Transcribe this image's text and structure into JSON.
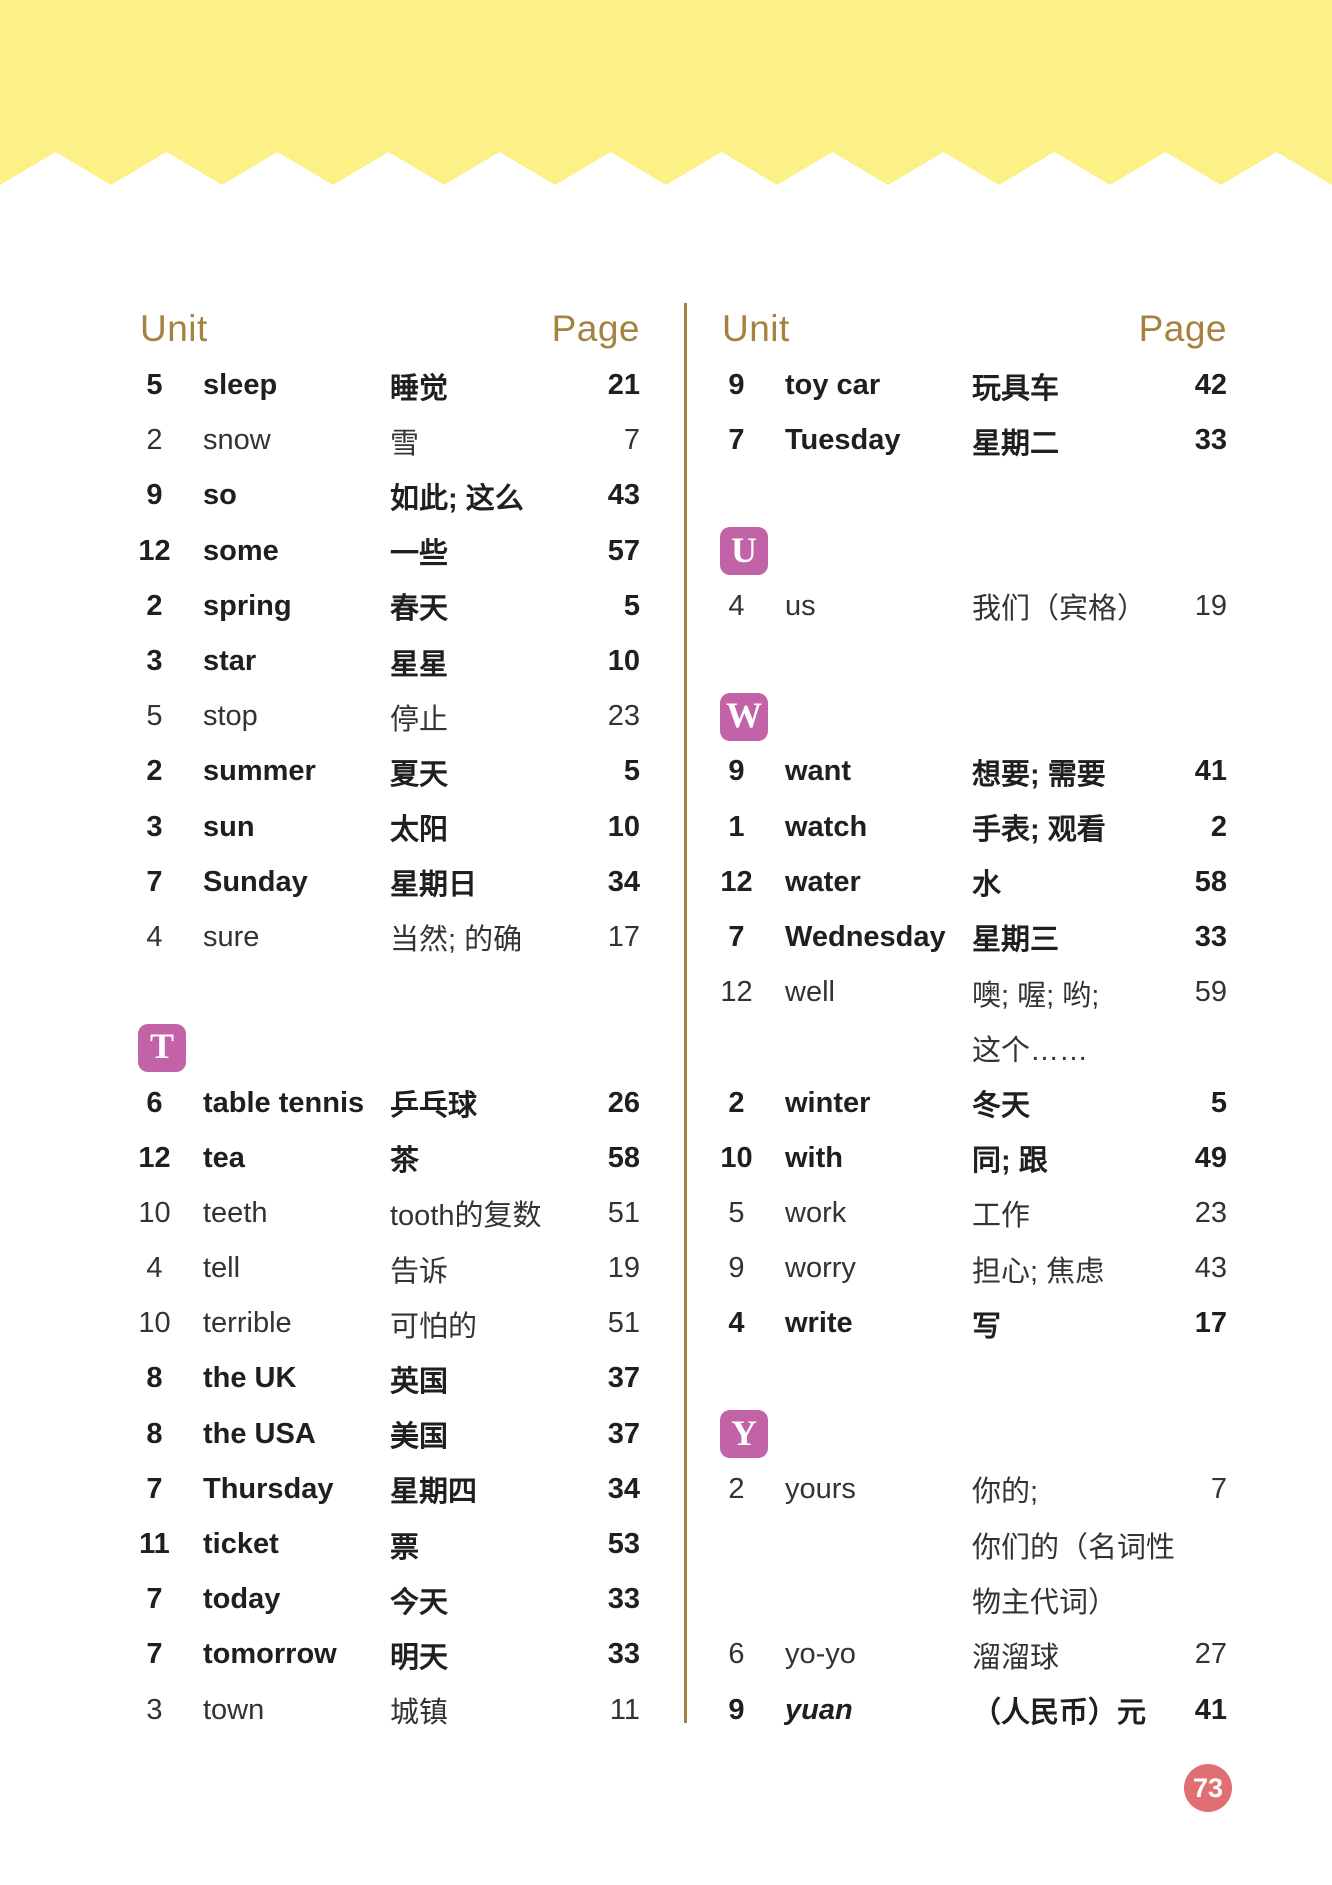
{
  "theme": {
    "banner_yellow": "#FCF187",
    "gold": "#A5823F",
    "pink": "#C363A7",
    "badge_red": "#E06E73"
  },
  "headers": {
    "unit": "Unit",
    "page": "Page"
  },
  "footer": {
    "page_number": "73"
  },
  "columns": {
    "left": {
      "rows": [
        {
          "t": "entry",
          "u": "5",
          "w": "sleep",
          "c": "睡觉",
          "p": "21",
          "b": true
        },
        {
          "t": "entry",
          "u": "2",
          "w": "snow",
          "c": "雪",
          "p": "7",
          "b": false
        },
        {
          "t": "entry",
          "u": "9",
          "w": "so",
          "c": "如此; 这么",
          "p": "43",
          "b": true
        },
        {
          "t": "entry",
          "u": "12",
          "w": "some",
          "c": "一些",
          "p": "57",
          "b": true
        },
        {
          "t": "entry",
          "u": "2",
          "w": "spring",
          "c": "春天",
          "p": "5",
          "b": true
        },
        {
          "t": "entry",
          "u": "3",
          "w": "star",
          "c": "星星",
          "p": "10",
          "b": true
        },
        {
          "t": "entry",
          "u": "5",
          "w": "stop",
          "c": "停止",
          "p": "23",
          "b": false
        },
        {
          "t": "entry",
          "u": "2",
          "w": "summer",
          "c": "夏天",
          "p": "5",
          "b": true
        },
        {
          "t": "entry",
          "u": "3",
          "w": "sun",
          "c": "太阳",
          "p": "10",
          "b": true
        },
        {
          "t": "entry",
          "u": "7",
          "w": "Sunday",
          "c": "星期日",
          "p": "34",
          "b": true
        },
        {
          "t": "entry",
          "u": "4",
          "w": "sure",
          "c": "当然; 的确",
          "p": "17",
          "b": false
        },
        {
          "t": "spacer"
        },
        {
          "t": "section",
          "letter": "T"
        },
        {
          "t": "entry",
          "u": "6",
          "w": "table tennis",
          "c": "乒乓球",
          "p": "26",
          "b": true
        },
        {
          "t": "entry",
          "u": "12",
          "w": "tea",
          "c": "茶",
          "p": "58",
          "b": true
        },
        {
          "t": "entry",
          "u": "10",
          "w": "teeth",
          "c": "tooth的复数",
          "p": "51",
          "b": false
        },
        {
          "t": "entry",
          "u": "4",
          "w": "tell",
          "c": "告诉",
          "p": "19",
          "b": false
        },
        {
          "t": "entry",
          "u": "10",
          "w": "terrible",
          "c": "可怕的",
          "p": "51",
          "b": false
        },
        {
          "t": "entry",
          "u": "8",
          "w": "the UK",
          "c": "英国",
          "p": "37",
          "b": true
        },
        {
          "t": "entry",
          "u": "8",
          "w": "the USA",
          "c": "美国",
          "p": "37",
          "b": true
        },
        {
          "t": "entry",
          "u": "7",
          "w": "Thursday",
          "c": "星期四",
          "p": "34",
          "b": true
        },
        {
          "t": "entry",
          "u": "11",
          "w": "ticket",
          "c": "票",
          "p": "53",
          "b": true
        },
        {
          "t": "entry",
          "u": "7",
          "w": "today",
          "c": "今天",
          "p": "33",
          "b": true
        },
        {
          "t": "entry",
          "u": "7",
          "w": "tomorrow",
          "c": "明天",
          "p": "33",
          "b": true
        },
        {
          "t": "entry",
          "u": "3",
          "w": "town",
          "c": "城镇",
          "p": "11",
          "b": false
        }
      ]
    },
    "right": {
      "rows": [
        {
          "t": "entry",
          "u": "9",
          "w": "toy car",
          "c": "玩具车",
          "p": "42",
          "b": true
        },
        {
          "t": "entry",
          "u": "7",
          "w": "Tuesday",
          "c": "星期二",
          "p": "33",
          "b": true
        },
        {
          "t": "spacer"
        },
        {
          "t": "section",
          "letter": "U"
        },
        {
          "t": "entry",
          "u": "4",
          "w": "us",
          "c": "我们（宾格）",
          "p": "19",
          "b": false
        },
        {
          "t": "spacer"
        },
        {
          "t": "section",
          "letter": "W"
        },
        {
          "t": "entry",
          "u": "9",
          "w": "want",
          "c": "想要; 需要",
          "p": "41",
          "b": true
        },
        {
          "t": "entry",
          "u": "1",
          "w": "watch",
          "c": "手表; 观看",
          "p": "2",
          "b": true
        },
        {
          "t": "entry",
          "u": "12",
          "w": "water",
          "c": "水",
          "p": "58",
          "b": true
        },
        {
          "t": "entry",
          "u": "7",
          "w": "Wednesday",
          "c": "星期三",
          "p": "33",
          "b": true
        },
        {
          "t": "entry",
          "u": "12",
          "w": "well",
          "c": "噢; 喔; 哟;",
          "p": "59",
          "b": false
        },
        {
          "t": "cont",
          "c": "这个……",
          "b": false
        },
        {
          "t": "entry",
          "u": "2",
          "w": "winter",
          "c": "冬天",
          "p": "5",
          "b": true
        },
        {
          "t": "entry",
          "u": "10",
          "w": "with",
          "c": "同; 跟",
          "p": "49",
          "b": true
        },
        {
          "t": "entry",
          "u": "5",
          "w": "work",
          "c": "工作",
          "p": "23",
          "b": false
        },
        {
          "t": "entry",
          "u": "9",
          "w": "worry",
          "c": "担心; 焦虑",
          "p": "43",
          "b": false
        },
        {
          "t": "entry",
          "u": "4",
          "w": "write",
          "c": "写",
          "p": "17",
          "b": true
        },
        {
          "t": "spacer"
        },
        {
          "t": "section",
          "letter": "Y"
        },
        {
          "t": "entry",
          "u": "2",
          "w": "yours",
          "c": "你的;",
          "p": "7",
          "b": false
        },
        {
          "t": "cont",
          "c": "你们的（名词性",
          "b": false
        },
        {
          "t": "cont",
          "c": "物主代词）",
          "b": false
        },
        {
          "t": "entry",
          "u": "6",
          "w": "yo-yo",
          "c": "溜溜球",
          "p": "27",
          "b": false
        },
        {
          "t": "entry",
          "u": "9",
          "w": "yuan",
          "c": "（人民币）元",
          "p": "41",
          "b": true,
          "i": true
        }
      ]
    }
  }
}
